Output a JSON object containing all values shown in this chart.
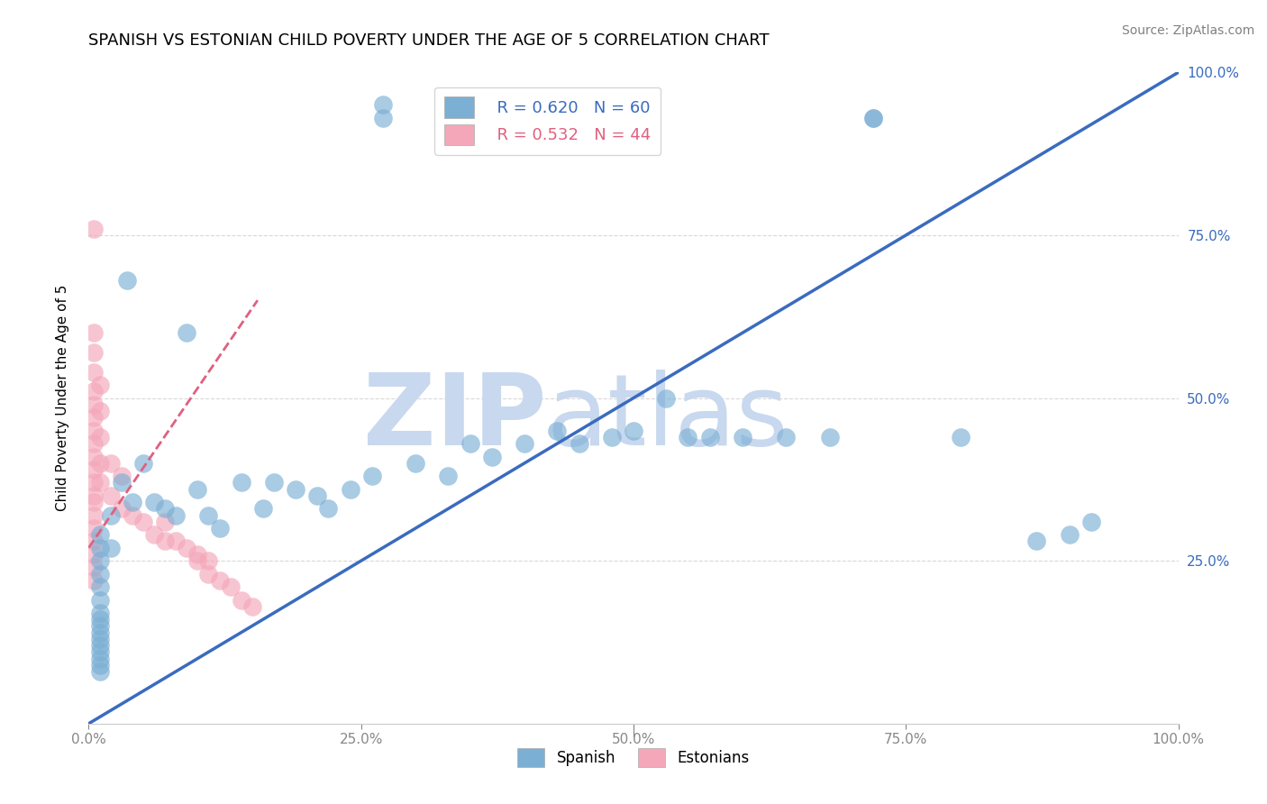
{
  "title": "SPANISH VS ESTONIAN CHILD POVERTY UNDER THE AGE OF 5 CORRELATION CHART",
  "source": "Source: ZipAtlas.com",
  "ylabel": "Child Poverty Under the Age of 5",
  "xlim": [
    0,
    1
  ],
  "ylim": [
    0,
    1
  ],
  "xtick_labels": [
    "0.0%",
    "25.0%",
    "50.0%",
    "75.0%",
    "100.0%"
  ],
  "xtick_values": [
    0.0,
    0.25,
    0.5,
    0.75,
    1.0
  ],
  "ytick_labels": [
    "25.0%",
    "50.0%",
    "75.0%",
    "100.0%"
  ],
  "ytick_values": [
    0.25,
    0.5,
    0.75,
    1.0
  ],
  "spanish_R": 0.62,
  "spanish_N": 60,
  "estonian_R": 0.532,
  "estonian_N": 44,
  "spanish_color": "#7bafd4",
  "estonian_color": "#f4a7b9",
  "spanish_line_color": "#3a6bbf",
  "estonian_line_color": "#e06080",
  "watermark_zip": "ZIP",
  "watermark_atlas": "atlas",
  "watermark_color_zip": "#c8d8ee",
  "watermark_color_atlas": "#c8d8ee",
  "grid_color": "#d8d8d8",
  "spanish_x": [
    0.27,
    0.27,
    0.035,
    0.09,
    0.01,
    0.01,
    0.01,
    0.01,
    0.01,
    0.01,
    0.01,
    0.01,
    0.01,
    0.01,
    0.01,
    0.01,
    0.01,
    0.01,
    0.01,
    0.01,
    0.02,
    0.02,
    0.03,
    0.04,
    0.05,
    0.06,
    0.07,
    0.08,
    0.1,
    0.11,
    0.12,
    0.14,
    0.16,
    0.17,
    0.19,
    0.21,
    0.22,
    0.24,
    0.26,
    0.3,
    0.33,
    0.35,
    0.37,
    0.4,
    0.43,
    0.45,
    0.48,
    0.5,
    0.53,
    0.55,
    0.57,
    0.6,
    0.64,
    0.68,
    0.72,
    0.72,
    0.8,
    0.87,
    0.9,
    0.92
  ],
  "spanish_y": [
    0.95,
    0.93,
    0.68,
    0.6,
    0.29,
    0.27,
    0.25,
    0.23,
    0.21,
    0.19,
    0.17,
    0.16,
    0.15,
    0.14,
    0.13,
    0.12,
    0.11,
    0.1,
    0.09,
    0.08,
    0.32,
    0.27,
    0.37,
    0.34,
    0.4,
    0.34,
    0.33,
    0.32,
    0.36,
    0.32,
    0.3,
    0.37,
    0.33,
    0.37,
    0.36,
    0.35,
    0.33,
    0.36,
    0.38,
    0.4,
    0.38,
    0.43,
    0.41,
    0.43,
    0.45,
    0.43,
    0.44,
    0.45,
    0.5,
    0.44,
    0.44,
    0.44,
    0.44,
    0.44,
    0.93,
    0.93,
    0.44,
    0.28,
    0.29,
    0.31
  ],
  "estonian_x": [
    0.005,
    0.005,
    0.005,
    0.005,
    0.005,
    0.005,
    0.005,
    0.005,
    0.005,
    0.005,
    0.005,
    0.005,
    0.005,
    0.005,
    0.005,
    0.005,
    0.005,
    0.005,
    0.005,
    0.005,
    0.01,
    0.01,
    0.01,
    0.01,
    0.01,
    0.02,
    0.02,
    0.03,
    0.03,
    0.04,
    0.05,
    0.06,
    0.07,
    0.07,
    0.08,
    0.09,
    0.1,
    0.1,
    0.11,
    0.11,
    0.12,
    0.13,
    0.14,
    0.15
  ],
  "estonian_y": [
    0.76,
    0.6,
    0.57,
    0.54,
    0.51,
    0.49,
    0.47,
    0.45,
    0.43,
    0.41,
    0.39,
    0.37,
    0.35,
    0.34,
    0.32,
    0.3,
    0.28,
    0.26,
    0.24,
    0.22,
    0.52,
    0.48,
    0.44,
    0.4,
    0.37,
    0.4,
    0.35,
    0.38,
    0.33,
    0.32,
    0.31,
    0.29,
    0.31,
    0.28,
    0.28,
    0.27,
    0.26,
    0.25,
    0.25,
    0.23,
    0.22,
    0.21,
    0.19,
    0.18
  ],
  "spanish_line_x0": 0.0,
  "spanish_line_y0": 0.0,
  "spanish_line_x1": 1.0,
  "spanish_line_y1": 1.0,
  "estonian_line_x0": 0.0,
  "estonian_line_y0": 0.27,
  "estonian_line_x1": 0.155,
  "estonian_line_y1": 0.65
}
